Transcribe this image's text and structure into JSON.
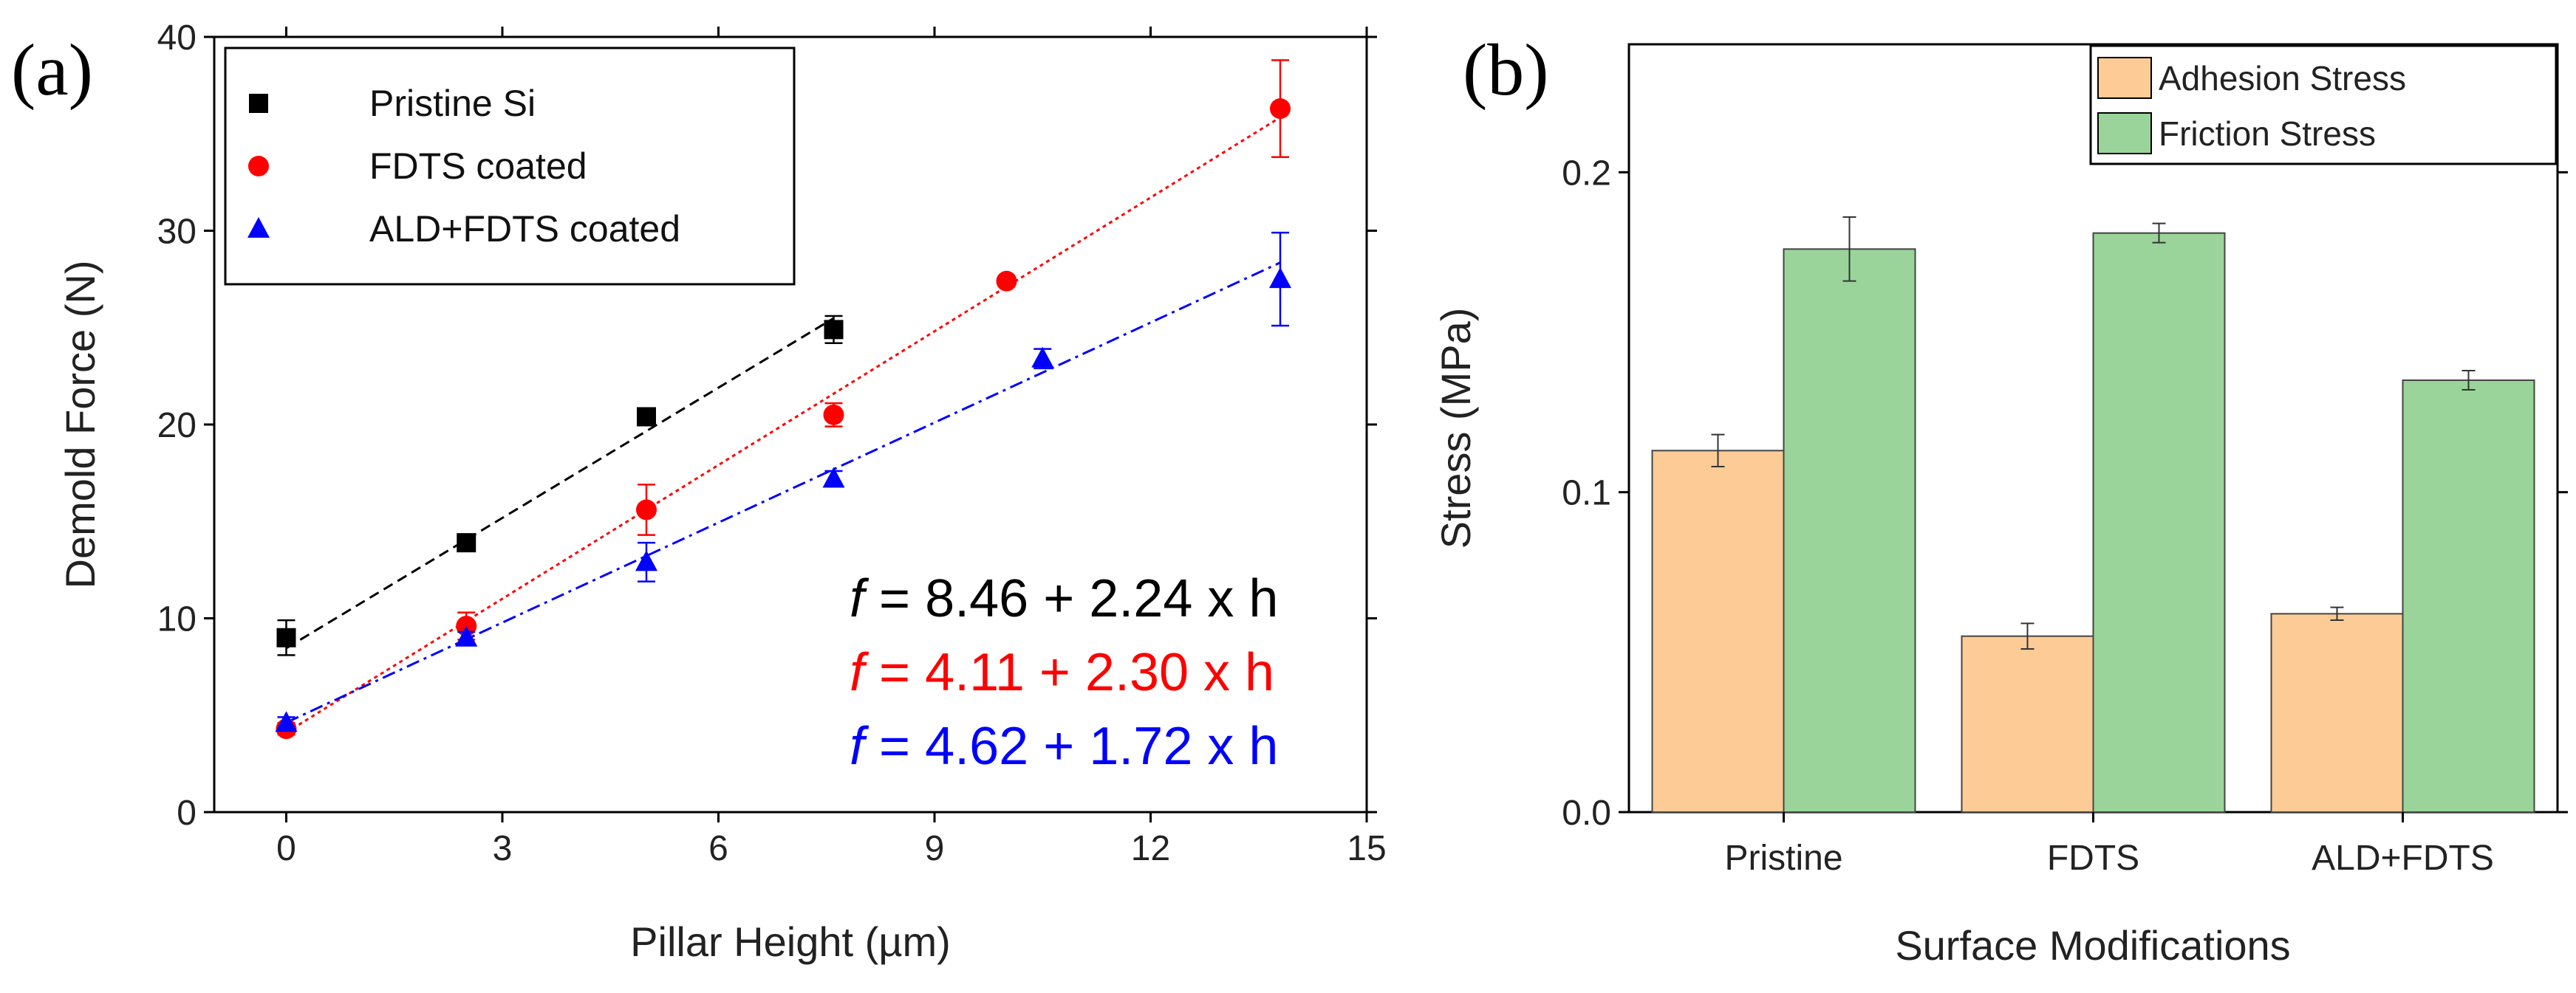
{
  "chart_data": [
    {
      "type": "scatter",
      "panel_label": "(a)",
      "xlabel": "Pillar Height (µm)",
      "ylabel": "Demold Force (N)",
      "xlim": [
        -1,
        15
      ],
      "ylim": [
        0,
        40
      ],
      "xticks": [
        "0",
        "3",
        "6",
        "9",
        "12",
        "15"
      ],
      "yticks": [
        "0",
        "10",
        "20",
        "30",
        "40"
      ],
      "grid": false,
      "legend_position": "top-left",
      "series": [
        {
          "name": "Pristine Si",
          "marker": "square",
          "color": "#000000",
          "line_style": "dashed",
          "fit": {
            "intercept": 8.46,
            "slope": 2.24,
            "x_range": [
              0,
              7.6
            ]
          },
          "points": [
            {
              "x": 0,
              "y": 9.0,
              "err": 0.9
            },
            {
              "x": 2.5,
              "y": 13.9,
              "err": 0.3
            },
            {
              "x": 5.0,
              "y": 20.4,
              "err": 0.3
            },
            {
              "x": 7.6,
              "y": 24.9,
              "err": 0.7
            }
          ]
        },
        {
          "name": "FDTS coated",
          "marker": "circle",
          "color": "#ff0000",
          "line_style": "dotted",
          "fit": {
            "intercept": 4.11,
            "slope": 2.3,
            "x_range": [
              0,
              13.8
            ]
          },
          "points": [
            {
              "x": 0,
              "y": 4.3,
              "err": 0.3
            },
            {
              "x": 2.5,
              "y": 9.6,
              "err": 0.7
            },
            {
              "x": 5.0,
              "y": 15.6,
              "err": 1.3
            },
            {
              "x": 7.6,
              "y": 20.5,
              "err": 0.6
            },
            {
              "x": 10.0,
              "y": 27.4,
              "err": 0.2
            },
            {
              "x": 13.8,
              "y": 36.3,
              "err": 2.5
            }
          ]
        },
        {
          "name": "ALD+FDTS coated",
          "marker": "triangle",
          "color": "#0000ff",
          "line_style": "dash-dot",
          "fit": {
            "intercept": 4.62,
            "slope": 1.72,
            "x_range": [
              0,
              13.8
            ]
          },
          "points": [
            {
              "x": 0,
              "y": 4.6,
              "err": 0.3
            },
            {
              "x": 2.5,
              "y": 9.0,
              "err": 0.3
            },
            {
              "x": 5.0,
              "y": 12.9,
              "err": 1.0
            },
            {
              "x": 7.6,
              "y": 17.2,
              "err": 0.4
            },
            {
              "x": 10.5,
              "y": 23.4,
              "err": 0.5
            },
            {
              "x": 13.8,
              "y": 27.5,
              "err": 2.4
            }
          ]
        }
      ],
      "annotations": [
        {
          "italic": "f",
          "text": " = 8.46 + 2.24 x h",
          "color": "#000000"
        },
        {
          "italic": "f",
          "text": " = 4.11 + 2.30 x h",
          "color": "#ff0000"
        },
        {
          "italic": "f",
          "text": " = 4.62 + 1.72 x h",
          "color": "#0000ff"
        }
      ]
    },
    {
      "type": "bar",
      "panel_label": "(b)",
      "xlabel": "Surface Modifications",
      "ylabel": "Stress (MPa)",
      "ylim": [
        0,
        0.24
      ],
      "yticks": [
        "0.0",
        "0.1",
        "0.2"
      ],
      "categories": [
        "Pristine",
        "FDTS",
        "ALD+FDTS"
      ],
      "legend_position": "top-right",
      "series": [
        {
          "name": "Adhesion Stress",
          "color": "#fdcc96",
          "values": [
            0.113,
            0.055,
            0.062
          ],
          "errors": [
            0.005,
            0.004,
            0.002
          ]
        },
        {
          "name": "Friction Stress",
          "color": "#9ad49a",
          "values": [
            0.176,
            0.181,
            0.135
          ],
          "errors": [
            0.01,
            0.003,
            0.003
          ]
        }
      ]
    }
  ]
}
